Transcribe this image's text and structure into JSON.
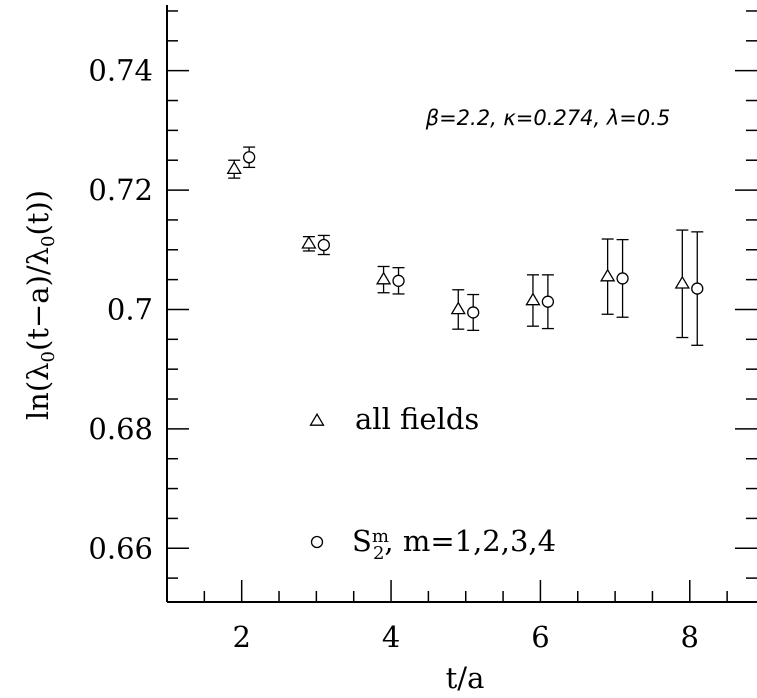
{
  "chart_data": {
    "type": "scatter",
    "title": "",
    "xlabel": "t/a",
    "ylabel_main": "ln(λ",
    "ylabel_sub1": "0",
    "ylabel_mid": "(t−a)/λ",
    "ylabel_sub2": "0",
    "ylabel_end": "(t))",
    "xlim": [
      1,
      8.9
    ],
    "ylim": [
      0.651,
      0.751
    ],
    "x_ticks": [
      2,
      4,
      6,
      8
    ],
    "x_tick_labels": [
      "2",
      "4",
      "6",
      "8"
    ],
    "y_ticks": [
      0.66,
      0.68,
      0.7,
      0.72,
      0.74
    ],
    "y_tick_labels": [
      "0.66",
      "0.68",
      "0.7",
      "0.72",
      "0.74"
    ],
    "annotation": "β=2.2,  κ=0.274,  λ=0.5",
    "series": [
      {
        "name": "all fields",
        "marker": "triangle",
        "x": [
          1.9,
          2.9,
          3.9,
          4.9,
          5.9,
          6.9,
          7.9
        ],
        "y": [
          0.7235,
          0.711,
          0.705,
          0.7,
          0.7015,
          0.7055,
          0.7043
        ],
        "err": [
          0.0015,
          0.0012,
          0.0022,
          0.0033,
          0.0043,
          0.0063,
          0.009
        ]
      },
      {
        "name": "S_2^m, m=1,2,3,4",
        "marker": "circle",
        "x": [
          2.1,
          3.1,
          4.1,
          5.1,
          6.1,
          7.1,
          8.1
        ],
        "y": [
          0.7255,
          0.7108,
          0.7048,
          0.6995,
          0.7013,
          0.7052,
          0.7035
        ],
        "err": [
          0.0017,
          0.0016,
          0.0022,
          0.003,
          0.0045,
          0.0065,
          0.0095
        ]
      }
    ],
    "legend": {
      "placement": "lower-left",
      "entries": [
        {
          "marker": "triangle",
          "label": "all fields"
        },
        {
          "marker": "circle",
          "label_main": "S",
          "label_sup": "m",
          "label_sub": "2",
          "label_rest": ",  m=1,2,3,4"
        }
      ]
    }
  }
}
